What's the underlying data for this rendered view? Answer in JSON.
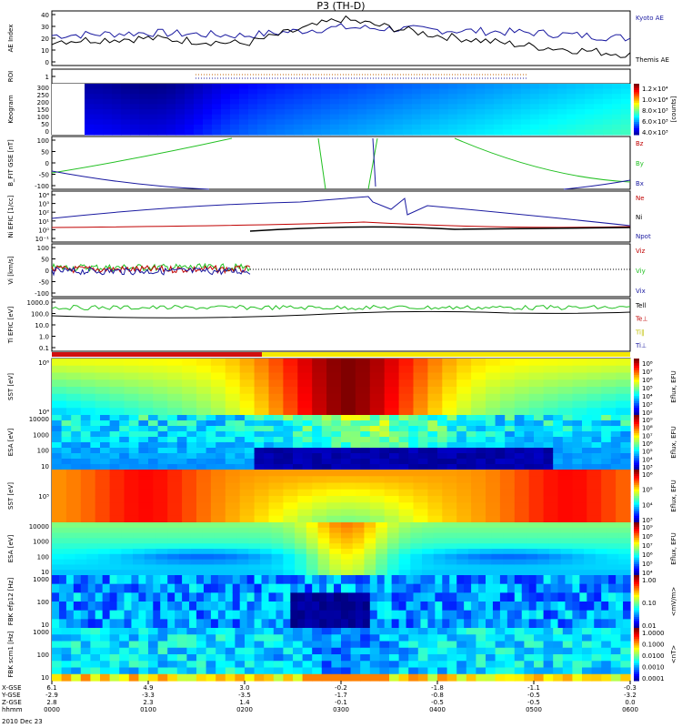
{
  "title": "P3 (TH-D)",
  "footer": {
    "rows": [
      {
        "label": "X-GSE",
        "values": [
          "6.1",
          "4.9",
          "3.0",
          "-0.2",
          "-1.8",
          "-1.1",
          "-0.3"
        ]
      },
      {
        "label": "Y-GSE",
        "values": [
          "-2.9",
          "-3.3",
          "-3.5",
          "-1.7",
          "-0.8",
          "-0.5",
          "-3.2"
        ]
      },
      {
        "label": "Z-GSE",
        "values": [
          "2.8",
          "2.3",
          "1.4",
          "-0.1",
          "-0.5",
          "-0.5",
          "0.0"
        ]
      },
      {
        "label": "hhmm",
        "values": [
          "0000",
          "0100",
          "0200",
          "0300",
          "0400",
          "0500",
          "0600"
        ]
      }
    ],
    "date": "2010 Dec 23"
  },
  "panels": [
    {
      "id": "ae",
      "ylabel": "AE Index",
      "ticks": [
        "40",
        "30",
        "20",
        "10",
        "0"
      ],
      "legend": [
        {
          "text": "Kyoto AE",
          "color": "#1a1aa0"
        },
        {
          "text": "Themis AE",
          "color": "#000000"
        }
      ]
    },
    {
      "id": "roi",
      "ylabel": "ROI",
      "ticks": [
        "1"
      ],
      "legend": []
    },
    {
      "id": "keogram",
      "ylabel": "Keogram",
      "ticks": [
        "300",
        "250",
        "200",
        "150",
        "100",
        "50",
        "0"
      ],
      "colorbar": {
        "labels": [
          "1.2×10⁴",
          "1.0×10⁴",
          "8.0×10³",
          "6.0×10³",
          "4.0×10³"
        ],
        "unit": "[counts]"
      }
    },
    {
      "id": "bfit",
      "ylabel": "B_FIT GSE [nT]",
      "ticks": [
        "100",
        "50",
        "0",
        "-50",
        "-100"
      ],
      "legend": [
        {
          "text": "Bz",
          "color": "#c00000"
        },
        {
          "text": "By",
          "color": "#22c022"
        },
        {
          "text": "Bx",
          "color": "#1a1aa0"
        }
      ]
    },
    {
      "id": "ni",
      "ylabel": "Ni EFIC [1/cc]",
      "ticks": [
        "10⁴",
        "10³",
        "10²",
        "10¹",
        "10⁰",
        "10⁻¹"
      ],
      "legend": [
        {
          "text": "Ne",
          "color": "#c00000"
        },
        {
          "text": "Ni",
          "color": "#000000"
        },
        {
          "text": "Npot",
          "color": "#1a1aa0"
        }
      ]
    },
    {
      "id": "vi",
      "ylabel": "Vi [km/s]",
      "ticks": [
        "100",
        "50",
        "0",
        "-50",
        "-100"
      ],
      "legend": [
        {
          "text": "Viz",
          "color": "#c00000"
        },
        {
          "text": "Viy",
          "color": "#22c022"
        },
        {
          "text": "Vix",
          "color": "#1a1aa0"
        }
      ]
    },
    {
      "id": "ti",
      "ylabel": "Ti EFIC [eV]",
      "ticks": [
        "1000.0",
        "100.0",
        "10.0",
        "1.0",
        "0.1"
      ],
      "legend": [
        {
          "text": "Tell",
          "color": "#000000"
        },
        {
          "text": "Te⊥",
          "color": "#c00000"
        },
        {
          "text": "Ti‖",
          "color": "#c0c000"
        },
        {
          "text": "Ti⊥",
          "color": "#1a1aa0"
        }
      ]
    },
    {
      "id": "sst1",
      "ylabel": "SST [eV]",
      "ticks": [
        "10⁶",
        "10⁴"
      ],
      "colorbar": {
        "labels": [
          "10⁸",
          "10⁷",
          "10⁶",
          "10⁵",
          "10⁴",
          "10³",
          "10²"
        ],
        "unit": "Eflux, EFU"
      }
    },
    {
      "id": "esa1",
      "ylabel": "ESA [eV]",
      "ticks": [
        "10000",
        "1000",
        "100",
        "10"
      ],
      "colorbar": {
        "labels": [
          "10⁹",
          "10⁸",
          "10⁷",
          "10⁶",
          "10⁵",
          "10⁴",
          "10³"
        ],
        "unit": "Eflux, EFU"
      }
    },
    {
      "id": "sst2",
      "ylabel": "SST [eV]",
      "ticks": [
        "10⁵"
      ],
      "colorbar": {
        "labels": [
          "10⁶",
          "10⁵",
          "10⁴",
          "10³"
        ],
        "unit": "Eflux, EFU"
      }
    },
    {
      "id": "esa2",
      "ylabel": "ESA [eV]",
      "ticks": [
        "10000",
        "1000",
        "100",
        "10"
      ],
      "colorbar": {
        "labels": [
          "10⁹",
          "10⁸",
          "10⁷",
          "10⁶",
          "10⁵",
          "10⁴"
        ],
        "unit": "Eflux, EFU"
      }
    },
    {
      "id": "fbk1",
      "ylabel": "FBK efp12 [Hz]",
      "ticks": [
        "1000",
        "100",
        "10"
      ],
      "colorbar": {
        "labels": [
          "1.00",
          "0.10",
          "0.01"
        ],
        "unit": "<mV/m>"
      }
    },
    {
      "id": "fbk2",
      "ylabel": "FBK scm1 [Hz]",
      "ticks": [
        "1000",
        "100",
        "10"
      ],
      "colorbar": {
        "labels": [
          "1.0000",
          "0.1000",
          "0.0100",
          "0.0010",
          "0.0001"
        ],
        "unit": "<nT>"
      }
    }
  ],
  "chart_data": {
    "type": "line",
    "title": "P3 (TH-D)",
    "date": "2010 Dec 23",
    "x": [
      "0000",
      "0100",
      "0200",
      "0300",
      "0400",
      "0500",
      "0600"
    ],
    "series": [
      {
        "name": "Kyoto AE",
        "values": [
          22,
          24,
          22,
          28,
          26,
          24,
          20
        ]
      },
      {
        "name": "Themis AE",
        "values": [
          18,
          20,
          16,
          34,
          22,
          14,
          8
        ]
      }
    ],
    "ylim": [
      0,
      40
    ]
  }
}
